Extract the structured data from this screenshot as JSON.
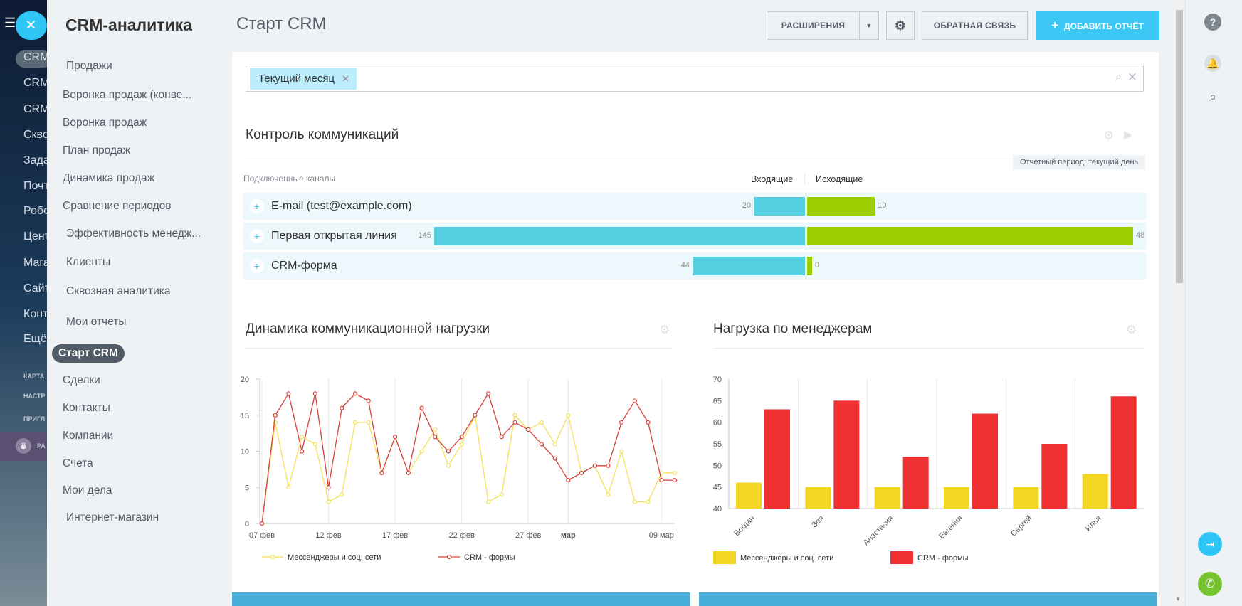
{
  "sidebar_peek": {
    "items": [
      "CRM",
      "CRM",
      "CRM",
      "Скво",
      "Зада",
      "Почт",
      "Робо",
      "Цент",
      "Мага",
      "Сайт",
      "Конт",
      "Ещё"
    ],
    "small": [
      "КАРТА",
      "НАСТР",
      "ПРИГЛ",
      "РА"
    ]
  },
  "menu": {
    "title": "CRM-аналитика",
    "items": [
      "Продажи",
      "Воронка продаж (конве...",
      "Воронка продаж",
      "План продаж",
      "Динамика продаж",
      "Сравнение периодов",
      "Эффективность менедж...",
      "Клиенты",
      "Сквозная аналитика",
      "Мои отчеты"
    ],
    "active": "Старт CRM",
    "items2": [
      "Сделки",
      "Контакты",
      "Компании",
      "Счета",
      "Мои дела",
      "Интернет-магазин"
    ]
  },
  "header": {
    "title": "Старт CRM",
    "extensions": "РАСШИРЕНИЯ",
    "feedback": "ОБРАТНАЯ СВЯЗЬ",
    "add_report": "ДОБАВИТЬ ОТЧЁТ"
  },
  "filter": {
    "chip": "Текущий месяц"
  },
  "communications": {
    "title": "Контроль коммуникаций",
    "period": "Отчетный период: текущий день",
    "col_channels": "Подключенные каналы",
    "col_in": "Входящие",
    "col_out": "Исходящие",
    "rows": [
      {
        "name": "E-mail (test@example.com)",
        "in": 20,
        "out": 10,
        "in_label": "20",
        "out_label": "10"
      },
      {
        "name": "Первая открытая линия",
        "in": 145,
        "out": 48,
        "in_label": "145",
        "out_label": "48"
      },
      {
        "name": "CRM-форма",
        "in": 44,
        "out": 0,
        "in_label": "44",
        "out_label": "0"
      }
    ]
  },
  "chart_data": [
    {
      "type": "line",
      "title": "Динамика коммуникационной нагрузки",
      "x": [
        "07 фев",
        "08 фев",
        "09 фев",
        "10 фев",
        "11 фев",
        "12 фев",
        "13 фев",
        "14 фев",
        "15 фев",
        "16 фев",
        "17 фев",
        "18 фев",
        "19 фев",
        "20 фев",
        "21 фев",
        "22 фев",
        "23 фев",
        "24 фев",
        "25 фев",
        "26 фев",
        "27 фев",
        "28 фев",
        "01 мар",
        "02 мар",
        "03 мар",
        "04 мар",
        "05 мар",
        "06 мар",
        "07 мар",
        "08 мар",
        "09 мар",
        "10 мар"
      ],
      "tick_labels": [
        "07 фев",
        "12 фев",
        "17 фев",
        "22 фев",
        "27 фев",
        "мар",
        "09 мар"
      ],
      "ylim": [
        0,
        20
      ],
      "yticks": [
        "0",
        "5",
        "10",
        "15",
        "20"
      ],
      "series": [
        {
          "name": "Мессенджеры и соц. сети",
          "color": "#f5e05a",
          "values": [
            0,
            14,
            5,
            12,
            11,
            3,
            4,
            14,
            14,
            7,
            12,
            7,
            10,
            13,
            8,
            11,
            15,
            3,
            4,
            15,
            13,
            14,
            11,
            15,
            7,
            8,
            4,
            10,
            3,
            3,
            7,
            7
          ]
        },
        {
          "name": "CRM - формы",
          "color": "#d5423b",
          "values": [
            0,
            15,
            18,
            10,
            18,
            5,
            16,
            18,
            17,
            7,
            12,
            7,
            16,
            12,
            10,
            12,
            15,
            18,
            12,
            14,
            13,
            11,
            9,
            6,
            7,
            8,
            8,
            14,
            17,
            14,
            6,
            6
          ]
        }
      ],
      "legend": "bottom-left"
    },
    {
      "type": "bar",
      "title": "Нагрузка по менеджерам",
      "categories": [
        "Богдан",
        "Зоя",
        "Анастасия",
        "Евгения",
        "Сергей",
        "Илья"
      ],
      "ylim": [
        40,
        70
      ],
      "yticks": [
        "40",
        "45",
        "50",
        "55",
        "60",
        "65",
        "70"
      ],
      "series": [
        {
          "name": "Мессенджеры и соц. сети",
          "color": "#f4d524",
          "values": [
            46,
            45,
            45,
            45,
            45,
            48
          ]
        },
        {
          "name": "CRM - формы",
          "color": "#ef3030",
          "values": [
            63,
            65,
            52,
            62,
            55,
            66
          ]
        }
      ],
      "legend": "bottom-left"
    }
  ]
}
